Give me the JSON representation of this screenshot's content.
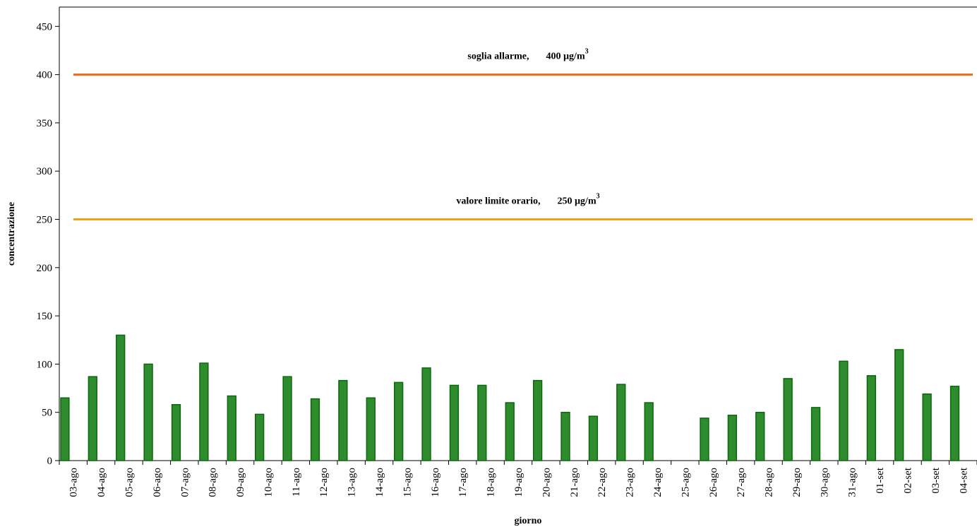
{
  "chart_data": {
    "type": "bar",
    "xlabel": "giorno",
    "ylabel": "concentrazione",
    "ylim": [
      0,
      450
    ],
    "yticks": [
      0,
      50,
      100,
      150,
      200,
      250,
      300,
      350,
      400,
      450
    ],
    "grid": false,
    "legend": "none",
    "categories": [
      "03-ago",
      "04-ago",
      "05-ago",
      "06-ago",
      "07-ago",
      "08-ago",
      "09-ago",
      "10-ago",
      "11-ago",
      "12-ago",
      "13-ago",
      "14-ago",
      "15-ago",
      "16-ago",
      "17-ago",
      "18-ago",
      "19-ago",
      "20-ago",
      "21-ago",
      "22-ago",
      "23-ago",
      "24-ago",
      "25-ago",
      "26-ago",
      "27-ago",
      "28-ago",
      "29-ago",
      "30-ago",
      "31-ago",
      "01-set",
      "02-set",
      "03-set",
      "04-set"
    ],
    "values": [
      65,
      87,
      130,
      100,
      58,
      101,
      67,
      48,
      87,
      64,
      83,
      65,
      81,
      96,
      78,
      78,
      60,
      83,
      50,
      46,
      79,
      60,
      0,
      44,
      47,
      50,
      85,
      55,
      103,
      88,
      115,
      69,
      77
    ],
    "reference_lines": [
      {
        "label": "soglia allarme,",
        "value_label": "400 µg/m",
        "sup": "3",
        "value": 400,
        "color": "#ec6c1c"
      },
      {
        "label": "valore limite orario,",
        "value_label": "250 µg/m",
        "sup": "3",
        "value": 250,
        "color": "#f6a01a"
      }
    ],
    "bar_color": "#2e8b2e",
    "bar_edge_color": "#0a6a0a"
  }
}
